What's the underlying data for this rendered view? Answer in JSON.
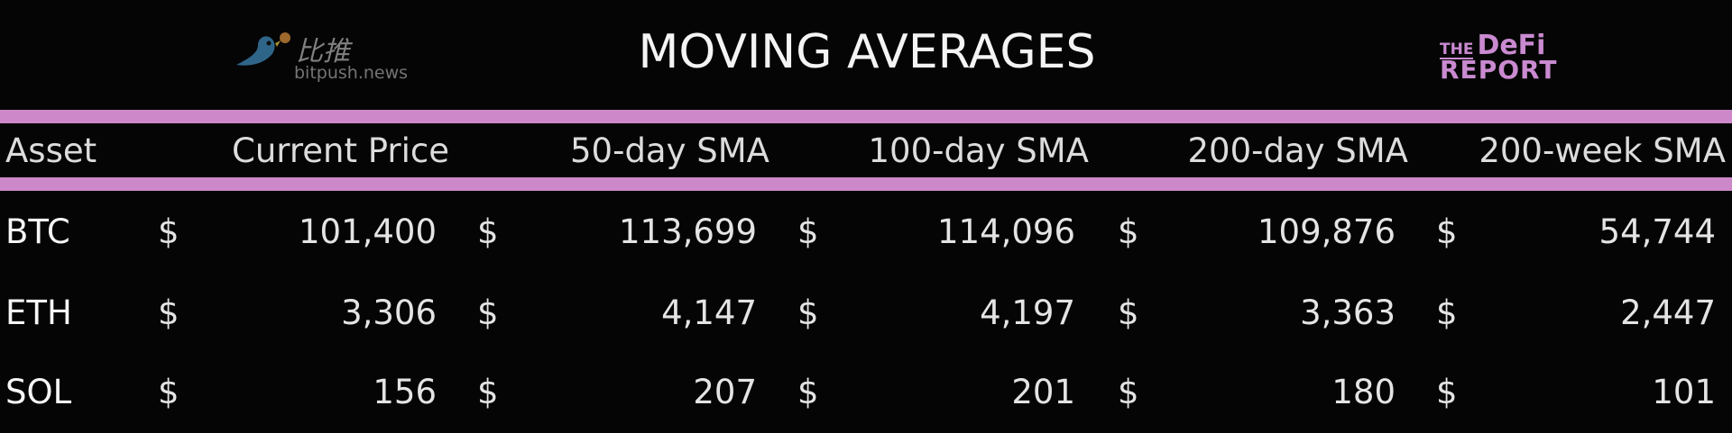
{
  "title": "MOVING AVERAGES",
  "logo": {
    "line1_small": "THE",
    "line1_big": "DeFi",
    "line2": "REPORT"
  },
  "colors": {
    "accent": "#cc88c8",
    "background": "#050505",
    "text": "#e2e2e2"
  },
  "headers": [
    "Asset",
    "Current Price",
    "50-day SMA",
    "100-day SMA",
    "200-day SMA",
    "200-week SMA"
  ],
  "currency": "$",
  "rows": [
    {
      "asset": "BTC",
      "values": [
        "101,400",
        "113,699",
        "114,096",
        "109,876",
        "54,744"
      ]
    },
    {
      "asset": "ETH",
      "values": [
        "3,306",
        "4,147",
        "4,197",
        "3,363",
        "2,447"
      ]
    },
    {
      "asset": "SOL",
      "values": [
        "156",
        "207",
        "201",
        "180",
        "101"
      ]
    }
  ],
  "watermark": {
    "icon": "bird-icon",
    "cn": "比推",
    "en": "bitpush.news"
  }
}
